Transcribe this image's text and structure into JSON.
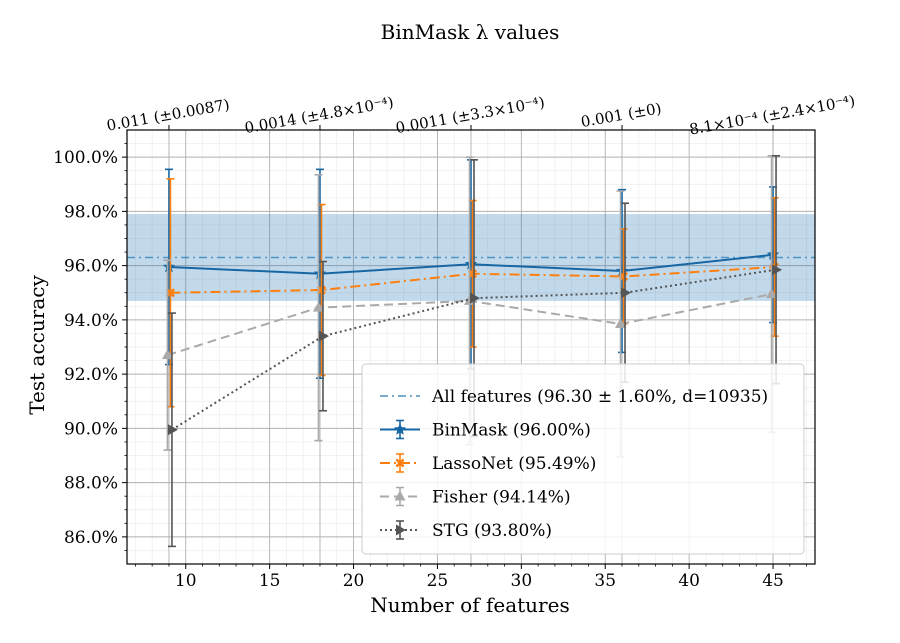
{
  "chart_data": {
    "type": "line",
    "title": "BinMask λ values",
    "xlabel": "Number of features",
    "ylabel": "Test accuracy",
    "xlim": [
      6.5,
      47.5
    ],
    "ylim": [
      85.0,
      101.0
    ],
    "x_ticks": [
      10,
      15,
      20,
      25,
      30,
      35,
      40,
      45
    ],
    "x_tick_labels": [
      "10",
      "15",
      "20",
      "25",
      "30",
      "35",
      "40",
      "45"
    ],
    "y_ticks": [
      86,
      88,
      90,
      92,
      94,
      96,
      98,
      100
    ],
    "y_tick_labels": [
      "86.0%",
      "88.0%",
      "90.0%",
      "92.0%",
      "94.0%",
      "96.0%",
      "98.0%",
      "100.0%"
    ],
    "top_axis_ticks": [
      9,
      18,
      27,
      36,
      45
    ],
    "top_axis_labels": [
      "0.011 (±0.0087)",
      "0.0014 (±4.8×10⁻⁴)",
      "0.0011 (±3.3×10⁻⁴)",
      "0.001 (±0)",
      "8.1×10⁻⁴ (±2.4×10⁻⁴)"
    ],
    "grid": true,
    "legend_position": "bottom-right",
    "baseline": {
      "name": "All features (96.30 ± 1.60%, d=10935)",
      "mean": 96.3,
      "std": 1.6,
      "color": "#1f77b4"
    },
    "series": [
      {
        "name": "BinMask (96.00%)",
        "color": "#1767a4",
        "marker": "star",
        "dash": "solid",
        "x": [
          9,
          18,
          27,
          36,
          45
        ],
        "values": [
          95.95,
          95.7,
          96.05,
          95.8,
          96.4
        ],
        "err": [
          3.6,
          3.85,
          3.85,
          3.0,
          2.5
        ]
      },
      {
        "name": "LassoNet (95.49%)",
        "color": "#ff7f0e",
        "marker": "x",
        "dash": "dashdot",
        "x": [
          9,
          18,
          27,
          36,
          45
        ],
        "values": [
          95.0,
          95.1,
          95.7,
          95.6,
          95.95
        ],
        "err": [
          4.2,
          3.15,
          2.7,
          1.75,
          2.55
        ]
      },
      {
        "name": "Fisher (94.14%)",
        "color": "#aaaaaa",
        "marker": "triangle-up",
        "dash": "dashed",
        "x": [
          9,
          18,
          27,
          36,
          45
        ],
        "values": [
          92.7,
          94.45,
          94.7,
          93.85,
          94.95
        ],
        "err": [
          3.5,
          4.9,
          5.3,
          4.9,
          5.1
        ]
      },
      {
        "name": "STG (93.80%)",
        "color": "#555555",
        "marker": "triangle-right",
        "dash": "dotted",
        "x": [
          9,
          18,
          27,
          36,
          45
        ],
        "values": [
          89.95,
          93.4,
          94.8,
          95.0,
          95.85
        ],
        "err": [
          4.3,
          2.75,
          5.1,
          3.3,
          4.2
        ]
      }
    ]
  }
}
